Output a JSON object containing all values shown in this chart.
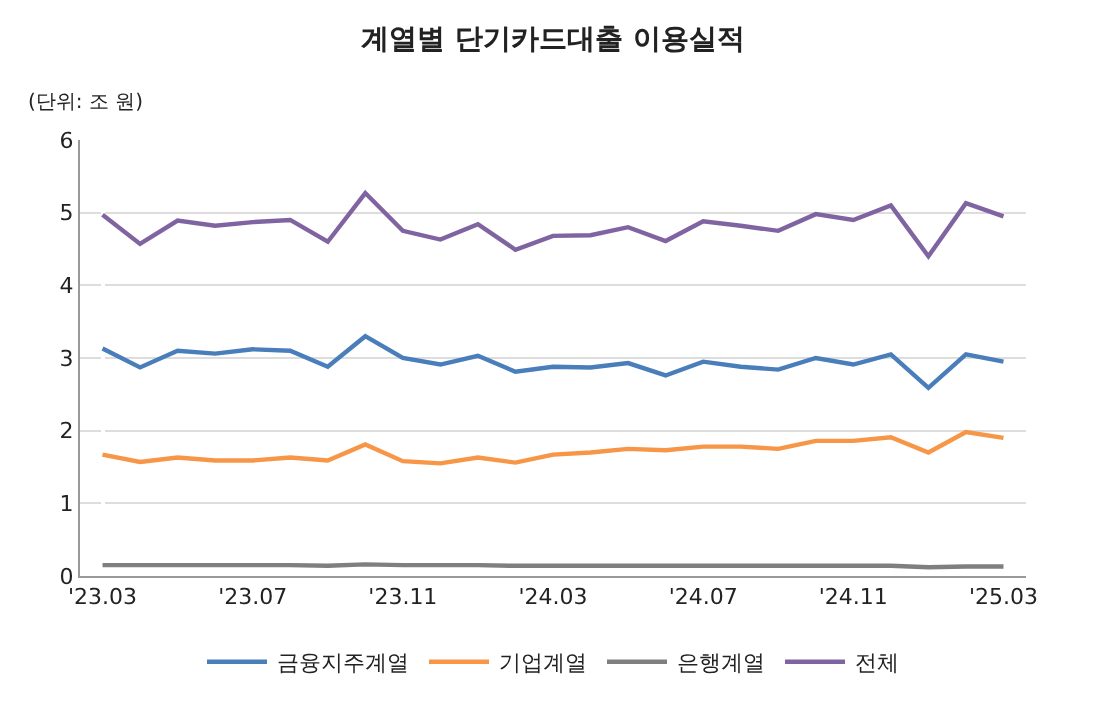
{
  "chart_data": {
    "type": "line",
    "title": "계열별 단기카드대출 이용실적",
    "ylabel": "(단위: 조 원)",
    "categories": [
      "'23.03",
      null,
      null,
      null,
      "'23.07",
      null,
      null,
      null,
      "'23.11",
      null,
      null,
      null,
      "'24.03",
      null,
      null,
      null,
      "'24.07",
      null,
      null,
      null,
      "'24.11",
      null,
      null,
      null,
      "'25.03"
    ],
    "series": [
      {
        "name": "금융지주계열",
        "color": "#4a7ebb",
        "values": [
          3.13,
          2.87,
          3.1,
          3.06,
          3.12,
          3.1,
          2.88,
          3.3,
          3.0,
          2.91,
          3.03,
          2.81,
          2.88,
          2.87,
          2.93,
          2.76,
          2.95,
          2.88,
          2.84,
          3.0,
          2.91,
          3.05,
          2.59,
          3.05,
          2.95
        ]
      },
      {
        "name": "기업계열",
        "color": "#f79646",
        "values": [
          1.67,
          1.57,
          1.63,
          1.59,
          1.59,
          1.63,
          1.59,
          1.81,
          1.58,
          1.55,
          1.63,
          1.56,
          1.67,
          1.7,
          1.75,
          1.73,
          1.78,
          1.78,
          1.75,
          1.86,
          1.86,
          1.91,
          1.7,
          1.98,
          1.9
        ]
      },
      {
        "name": "은행계열",
        "color": "#7f7f7f",
        "values": [
          0.15,
          0.15,
          0.15,
          0.15,
          0.15,
          0.15,
          0.14,
          0.16,
          0.15,
          0.15,
          0.15,
          0.14,
          0.14,
          0.14,
          0.14,
          0.14,
          0.14,
          0.14,
          0.14,
          0.14,
          0.14,
          0.14,
          0.12,
          0.13,
          0.13
        ]
      },
      {
        "name": "전체",
        "color": "#8064a2",
        "values": [
          4.97,
          4.57,
          4.89,
          4.82,
          4.87,
          4.9,
          4.6,
          5.27,
          4.75,
          4.63,
          4.84,
          4.49,
          4.68,
          4.69,
          4.8,
          4.61,
          4.88,
          4.82,
          4.75,
          4.98,
          4.9,
          5.1,
          4.4,
          5.13,
          4.95
        ]
      }
    ],
    "ylim": [
      0,
      6
    ],
    "yticks": [
      0,
      1,
      2,
      3,
      4,
      5,
      6
    ],
    "grid": "y",
    "legend": "bottom",
    "marker": "none",
    "line_style": "solid"
  }
}
